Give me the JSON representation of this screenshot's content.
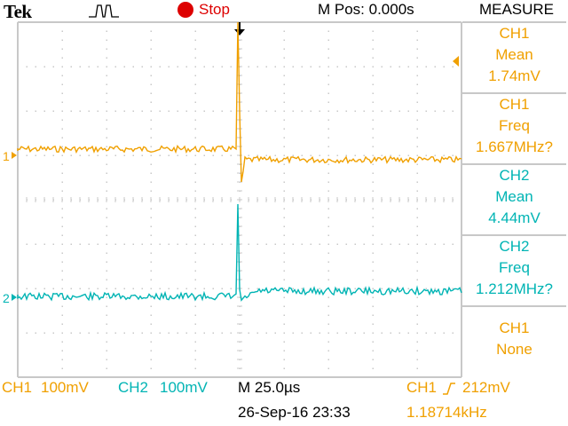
{
  "header": {
    "brand": "Tek",
    "run_state": "Stop",
    "mpos": "M Pos: 0.000s",
    "measure_title": "MEASURE"
  },
  "colors": {
    "ch1": "#f0a000",
    "ch2": "#00b4b4",
    "stop": "#dd0000",
    "grid": "#c8c8c8"
  },
  "markers": {
    "ch1_label": "1",
    "ch2_label": "2"
  },
  "measurements": [
    {
      "source": "CH1",
      "type": "Mean",
      "value": "1.74mV",
      "channel": "ch1"
    },
    {
      "source": "CH1",
      "type": "Freq",
      "value": "1.667MHz?",
      "channel": "ch1"
    },
    {
      "source": "CH2",
      "type": "Mean",
      "value": "4.44mV",
      "channel": "ch2"
    },
    {
      "source": "CH2",
      "type": "Freq",
      "value": "1.212MHz?",
      "channel": "ch2"
    },
    {
      "source": "CH1",
      "type": "None",
      "value": "",
      "channel": "ch1"
    }
  ],
  "footer": {
    "ch1_label": "CH1",
    "ch1_scale": "100mV",
    "ch2_label": "CH2",
    "ch2_scale": "100mV",
    "timebase": "M 25.0µs",
    "timestamp": "26-Sep-16 23:33",
    "trigger_source": "CH1",
    "trigger_level": "212mV",
    "trigger_freq": "1.18714kHz"
  }
}
